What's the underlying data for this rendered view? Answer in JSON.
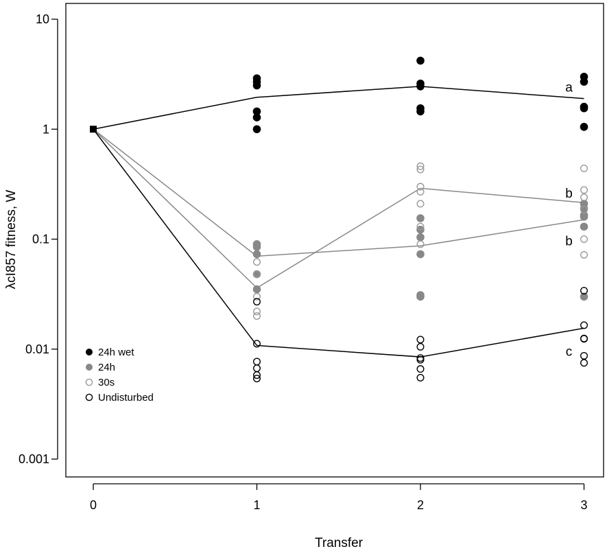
{
  "chart_data": {
    "type": "scatter",
    "xlabel": "Transfer",
    "ylabel": "λcI857 fitness, W",
    "y_scale": "log",
    "xlim": [
      0,
      3
    ],
    "ylim": [
      0.001,
      10
    ],
    "x_ticks": [
      "0",
      "1",
      "2",
      "3"
    ],
    "y_ticks": [
      "0.001",
      "0.01",
      "0.1",
      "1",
      "10"
    ],
    "grid": false,
    "legend": {
      "position": "bottom-left",
      "entries": [
        {
          "label": "24h wet",
          "color": "#000000",
          "filled": true
        },
        {
          "label": "24h",
          "color": "#888888",
          "filled": true
        },
        {
          "label": "30s",
          "color": "#999999",
          "filled": false
        },
        {
          "label": "Undisturbed",
          "color": "#000000",
          "filled": false
        }
      ]
    },
    "series": [
      {
        "name": "24h wet",
        "color": "#000000",
        "filled": true,
        "line_color": "#000000",
        "mean": [
          [
            0,
            1.0
          ],
          [
            1,
            1.95
          ],
          [
            2,
            2.45
          ],
          [
            3,
            1.9
          ]
        ],
        "points": [
          [
            1,
            2.9
          ],
          [
            1,
            2.7
          ],
          [
            1,
            2.5
          ],
          [
            1,
            1.45
          ],
          [
            1,
            1.28
          ],
          [
            1,
            1.0
          ],
          [
            2,
            4.2
          ],
          [
            2,
            2.6
          ],
          [
            2,
            2.45
          ],
          [
            2,
            1.55
          ],
          [
            2,
            1.45
          ],
          [
            3,
            3.0
          ],
          [
            3,
            2.7
          ],
          [
            3,
            1.6
          ],
          [
            3,
            1.55
          ],
          [
            3,
            1.05
          ]
        ]
      },
      {
        "name": "24h",
        "color": "#888888",
        "filled": true,
        "line_color": "#888888",
        "mean": [
          [
            0,
            1.0
          ],
          [
            1,
            0.07
          ],
          [
            2,
            0.087
          ],
          [
            3,
            0.15
          ]
        ],
        "points": [
          [
            1,
            0.09
          ],
          [
            1,
            0.085
          ],
          [
            1,
            0.073
          ],
          [
            1,
            0.048
          ],
          [
            1,
            0.035
          ],
          [
            2,
            0.155
          ],
          [
            2,
            0.122
          ],
          [
            2,
            0.104
          ],
          [
            2,
            0.073
          ],
          [
            2,
            0.031
          ],
          [
            2,
            0.03
          ],
          [
            3,
            0.21
          ],
          [
            3,
            0.19
          ],
          [
            3,
            0.165
          ],
          [
            3,
            0.16
          ],
          [
            3,
            0.13
          ],
          [
            3,
            0.03
          ]
        ]
      },
      {
        "name": "30s",
        "color": "#999999",
        "filled": false,
        "line_color": "#888888",
        "mean": [
          [
            0,
            1.0
          ],
          [
            1,
            0.036
          ],
          [
            2,
            0.29
          ],
          [
            3,
            0.215
          ]
        ],
        "points": [
          [
            1,
            0.062
          ],
          [
            1,
            0.048
          ],
          [
            1,
            0.03
          ],
          [
            1,
            0.022
          ],
          [
            1,
            0.02
          ],
          [
            2,
            0.46
          ],
          [
            2,
            0.43
          ],
          [
            2,
            0.3
          ],
          [
            2,
            0.27
          ],
          [
            2,
            0.21
          ],
          [
            2,
            0.13
          ],
          [
            2,
            0.09
          ],
          [
            3,
            0.44
          ],
          [
            3,
            0.28
          ],
          [
            3,
            0.24
          ],
          [
            3,
            0.185
          ],
          [
            3,
            0.1
          ],
          [
            3,
            0.072
          ]
        ]
      },
      {
        "name": "Undisturbed",
        "color": "#000000",
        "filled": false,
        "line_color": "#000000",
        "mean": [
          [
            0,
            1.0
          ],
          [
            1,
            0.0108
          ],
          [
            2,
            0.0085
          ],
          [
            3,
            0.0155
          ]
        ],
        "points": [
          [
            1,
            0.027
          ],
          [
            1,
            0.0112
          ],
          [
            1,
            0.0077
          ],
          [
            1,
            0.0067
          ],
          [
            1,
            0.0058
          ],
          [
            1,
            0.0054
          ],
          [
            2,
            0.0122
          ],
          [
            2,
            0.0105
          ],
          [
            2,
            0.0083
          ],
          [
            2,
            0.008
          ],
          [
            2,
            0.0066
          ],
          [
            2,
            0.0055
          ],
          [
            3,
            0.034
          ],
          [
            3,
            0.0165
          ],
          [
            3,
            0.0125
          ],
          [
            3,
            0.0124
          ],
          [
            3,
            0.0087
          ],
          [
            3,
            0.0075
          ]
        ]
      }
    ],
    "annotations": [
      {
        "text": "a",
        "x": 3,
        "y": 2.4
      },
      {
        "text": "b",
        "x": 3,
        "y": 0.26
      },
      {
        "text": "b",
        "x": 3,
        "y": 0.096
      },
      {
        "text": "c",
        "x": 3,
        "y": 0.0095
      }
    ]
  }
}
